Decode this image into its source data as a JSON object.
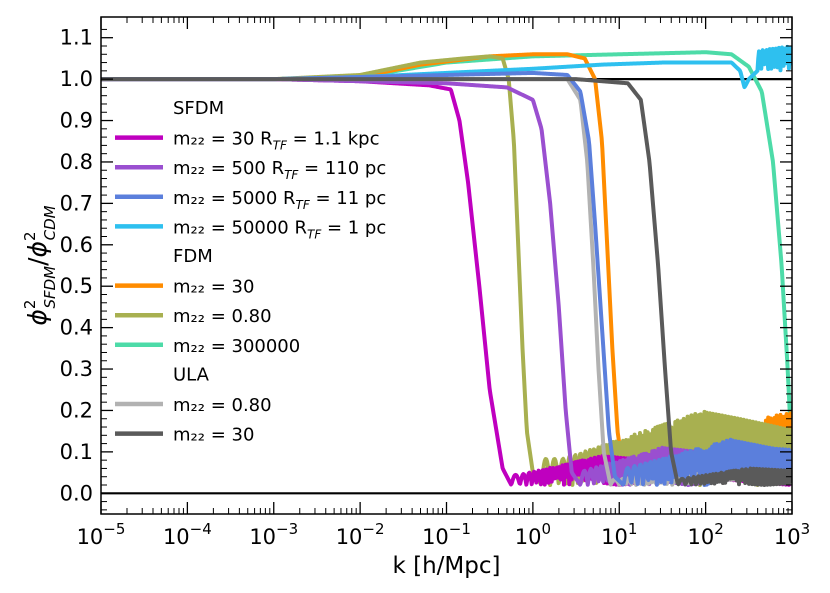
{
  "chart_data": {
    "type": "line",
    "xscale": "log",
    "xlim": [
      1e-05,
      1000
    ],
    "ylim": [
      -0.05,
      1.15
    ],
    "xlabel": "k [h/Mpc]",
    "ylabel": {
      "base1": "ϕ",
      "sup1": "2",
      "sub1": "SFDM",
      "slash": "/",
      "base2": "ϕ",
      "sup2": "2",
      "sub2": "CDM"
    },
    "x_tick_labels": [
      {
        "base": "10",
        "exp": "−5",
        "value": -5
      },
      {
        "base": "10",
        "exp": "−4",
        "value": -4
      },
      {
        "base": "10",
        "exp": "−3",
        "value": -3
      },
      {
        "base": "10",
        "exp": "−2",
        "value": -2
      },
      {
        "base": "10",
        "exp": "−1",
        "value": -1
      },
      {
        "base": "10",
        "exp": "0",
        "value": 0
      },
      {
        "base": "10",
        "exp": "1",
        "value": 1
      },
      {
        "base": "10",
        "exp": "2",
        "value": 2
      },
      {
        "base": "10",
        "exp": "3",
        "value": 3
      }
    ],
    "y_ticks": [
      0.0,
      0.1,
      0.2,
      0.3,
      0.4,
      0.5,
      0.6,
      0.7,
      0.8,
      0.9,
      1.0,
      1.1
    ],
    "y_tick_labels": [
      "0.0",
      "0.1",
      "0.2",
      "0.3",
      "0.4",
      "0.5",
      "0.6",
      "0.7",
      "0.8",
      "0.9",
      "1.0",
      "1.1"
    ],
    "reference_lines": [
      1.0,
      0.0
    ],
    "legend": {
      "position": "center-left",
      "groups": [
        {
          "title": "SFDM",
          "entries": [
            {
              "label": "m₂₂ = 30 R",
              "sub": "TF",
              "tail": " = 1.1 kpc",
              "color": "#bf00bf"
            },
            {
              "label": "m₂₂ = 500 R",
              "sub": "TF",
              "tail": " = 110 pc",
              "color": "#9a4fd0"
            },
            {
              "label": "m₂₂ = 5000 R",
              "sub": "TF",
              "tail": " = 11 pc",
              "color": "#5b7fdc"
            },
            {
              "label": "m₂₂ = 50000 R",
              "sub": "TF",
              "tail": " = 1 pc",
              "color": "#2ec0ef"
            }
          ]
        },
        {
          "title": "FDM",
          "entries": [
            {
              "label": "m₂₂ = 30",
              "color": "#ff8c00"
            },
            {
              "label": "m₂₂ = 0.80",
              "color": "#a8b050"
            },
            {
              "label": "m₂₂ = 300000",
              "color": "#4ddba8"
            }
          ]
        },
        {
          "title": "ULA",
          "entries": [
            {
              "label": "m₂₂ = 0.80",
              "color": "#b2b2b2"
            },
            {
              "label": "m₂₂ = 30",
              "color": "#5a5a5a"
            }
          ]
        }
      ]
    },
    "series": [
      {
        "name": "FDM m22=300000",
        "color": "#4ddba8",
        "amp": 1.0,
        "pts": [
          [
            -5,
            1.0
          ],
          [
            -3,
            1.0
          ],
          [
            -2,
            1.005
          ],
          [
            -1,
            1.04
          ],
          [
            0,
            1.055
          ],
          [
            1,
            1.06
          ],
          [
            2,
            1.065
          ],
          [
            2.3,
            1.06
          ],
          [
            2.5,
            1.03
          ],
          [
            2.65,
            0.97
          ],
          [
            2.78,
            0.8
          ],
          [
            2.88,
            0.55
          ],
          [
            2.95,
            0.3
          ],
          [
            3,
            0.08
          ]
        ]
      },
      {
        "name": "FDM m22=30",
        "color": "#ff8c00",
        "amp": 0.17,
        "osc": [
          1.2,
          3.0
        ],
        "pts": [
          [
            -5,
            1.0
          ],
          [
            -3,
            1.0
          ],
          [
            -2,
            1.005
          ],
          [
            -1.3,
            1.035
          ],
          [
            -0.5,
            1.055
          ],
          [
            0,
            1.06
          ],
          [
            0.4,
            1.06
          ],
          [
            0.6,
            1.05
          ],
          [
            0.72,
            1.0
          ],
          [
            0.8,
            0.85
          ],
          [
            0.86,
            0.6
          ],
          [
            0.92,
            0.35
          ],
          [
            0.98,
            0.15
          ],
          [
            1.05,
            0.05
          ],
          [
            1.2,
            0.03
          ]
        ]
      },
      {
        "name": "FDM m22=0.80",
        "color": "#a8b050",
        "amp": 0.18,
        "osc": [
          0.35,
          2.0
        ],
        "pts": [
          [
            -5,
            1.0
          ],
          [
            -3,
            1.0
          ],
          [
            -2,
            1.01
          ],
          [
            -1.3,
            1.04
          ],
          [
            -0.8,
            1.05
          ],
          [
            -0.5,
            1.055
          ],
          [
            -0.35,
            1.05
          ],
          [
            -0.28,
            1.0
          ],
          [
            -0.22,
            0.85
          ],
          [
            -0.17,
            0.6
          ],
          [
            -0.12,
            0.35
          ],
          [
            -0.07,
            0.15
          ],
          [
            0.0,
            0.05
          ],
          [
            0.1,
            0.02
          ]
        ]
      },
      {
        "name": "SFDM m22=50000",
        "color": "#2ec0ef",
        "amp": 0.06,
        "osc": [
          1.65,
          3.0
        ],
        "pts": [
          [
            -5,
            1.0
          ],
          [
            -3,
            1.0
          ],
          [
            -2,
            1.005
          ],
          [
            -1,
            1.015
          ],
          [
            0,
            1.025
          ],
          [
            0.8,
            1.035
          ],
          [
            1.5,
            1.04
          ],
          [
            2,
            1.04
          ],
          [
            2.3,
            1.04
          ],
          [
            2.4,
            1.02
          ],
          [
            2.45,
            0.98
          ],
          [
            2.5,
            1.0
          ],
          [
            2.6,
            1.02
          ]
        ]
      },
      {
        "name": "SFDM m22=30",
        "color": "#bf00bf",
        "amp": 0.07,
        "osc": [
          -0.15,
          0.8
        ],
        "pts": [
          [
            -5,
            1.0
          ],
          [
            -3,
            1.0
          ],
          [
            -2,
            0.995
          ],
          [
            -1.2,
            0.985
          ],
          [
            -0.95,
            0.975
          ],
          [
            -0.85,
            0.9
          ],
          [
            -0.75,
            0.75
          ],
          [
            -0.62,
            0.5
          ],
          [
            -0.5,
            0.25
          ],
          [
            -0.35,
            0.06
          ],
          [
            -0.25,
            0.02
          ]
        ]
      },
      {
        "name": "SFDM m22=500",
        "color": "#9a4fd0",
        "amp": 0.09,
        "osc": [
          0.55,
          1.5
        ],
        "pts": [
          [
            -5,
            1.0
          ],
          [
            -3,
            1.0
          ],
          [
            -2,
            0.995
          ],
          [
            -1,
            0.99
          ],
          [
            -0.3,
            0.98
          ],
          [
            0.0,
            0.95
          ],
          [
            0.1,
            0.88
          ],
          [
            0.2,
            0.7
          ],
          [
            0.3,
            0.45
          ],
          [
            0.38,
            0.2
          ],
          [
            0.45,
            0.05
          ],
          [
            0.55,
            0.02
          ]
        ]
      },
      {
        "name": "ULA m22=0.80",
        "color": "#b2b2b2",
        "amp": 0.04,
        "osc": [
          1.0,
          2.0
        ],
        "pts": [
          [
            -5,
            1.0
          ],
          [
            -3,
            1.0
          ],
          [
            -1,
            1.0
          ],
          [
            0,
            1.0
          ],
          [
            0.4,
            1.0
          ],
          [
            0.55,
            0.95
          ],
          [
            0.63,
            0.8
          ],
          [
            0.7,
            0.55
          ],
          [
            0.76,
            0.3
          ],
          [
            0.82,
            0.1
          ],
          [
            0.9,
            0.02
          ]
        ]
      },
      {
        "name": "SFDM m22=5000",
        "color": "#5b7fdc",
        "amp": 0.11,
        "osc": [
          1.05,
          2.3
        ],
        "pts": [
          [
            -5,
            1.0
          ],
          [
            -3,
            1.0
          ],
          [
            -2,
            1.005
          ],
          [
            -1,
            1.01
          ],
          [
            0,
            1.015
          ],
          [
            0.4,
            1.01
          ],
          [
            0.55,
            0.97
          ],
          [
            0.65,
            0.85
          ],
          [
            0.72,
            0.65
          ],
          [
            0.8,
            0.4
          ],
          [
            0.88,
            0.15
          ],
          [
            0.95,
            0.04
          ],
          [
            1.05,
            0.02
          ]
        ]
      },
      {
        "name": "ULA m22=30",
        "color": "#5a5a5a",
        "amp": 0.04,
        "osc": [
          1.7,
          2.5
        ],
        "pts": [
          [
            -5,
            1.0
          ],
          [
            -3,
            1.0
          ],
          [
            -1,
            1.0
          ],
          [
            0.5,
            1.0
          ],
          [
            1.1,
            0.99
          ],
          [
            1.25,
            0.95
          ],
          [
            1.35,
            0.8
          ],
          [
            1.45,
            0.55
          ],
          [
            1.53,
            0.3
          ],
          [
            1.6,
            0.1
          ],
          [
            1.68,
            0.02
          ]
        ]
      }
    ]
  }
}
